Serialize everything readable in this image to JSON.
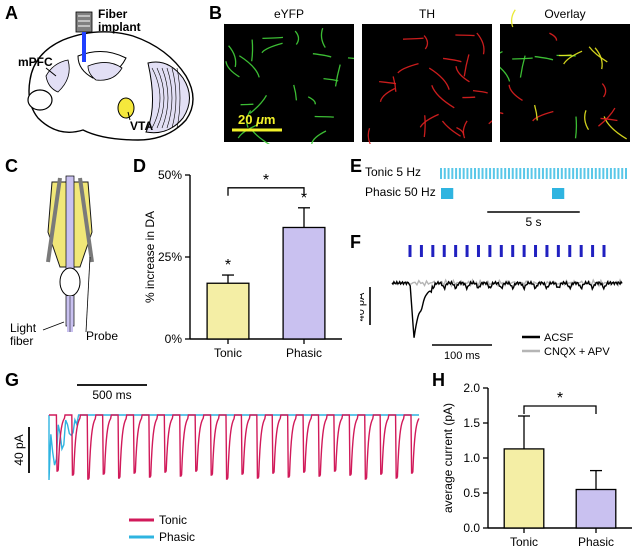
{
  "panelA": {
    "label": "A",
    "annotations": {
      "fiber": "Fiber\nimplant",
      "mpfc": "mPFC",
      "vta": "VTA"
    },
    "colors": {
      "fiber_tip": "#2040ff",
      "fiber_shaft": "#808080",
      "mpfc_fill": "#e2dff5",
      "vta_fill": "#f5e83c",
      "outline": "#000000"
    }
  },
  "panelB": {
    "label": "B",
    "columns": [
      "eYFP",
      "TH",
      "Overlay"
    ],
    "scalebar": "20",
    "scalebar_unit": "μm",
    "colors": {
      "bg": "#000000",
      "eyfp": "#43d13a",
      "th": "#e02020",
      "overlay_yellow": "#e8e820",
      "scalebar_text": "#f2f22a",
      "label_text": "#000000"
    },
    "font_size": 12
  },
  "panelC": {
    "label": "C",
    "light_fiber_label": "Light\nfiber",
    "probe_label": "Probe",
    "colors": {
      "optrode_body": "#f0e56a",
      "fiber": "#c9c1f0",
      "probe": "#7a7a7a",
      "outline": "#000000"
    }
  },
  "panelD": {
    "label": "D",
    "type": "bar",
    "categories": [
      "Tonic",
      "Phasic"
    ],
    "values": [
      17,
      34
    ],
    "errors": [
      2.5,
      6
    ],
    "ylabel": "% increase in DA",
    "ylim": [
      0,
      50
    ],
    "ytick_step": 25,
    "bar_colors": [
      "#f4eea5",
      "#c9c1f0"
    ],
    "bar_border": "#000000",
    "bar_width": 0.55,
    "sig_markers": {
      "bracket_between": "*",
      "above_tonic": "*",
      "above_phasic": "*"
    },
    "tick_fontsize": 12,
    "label_fontsize": 12
  },
  "panelE": {
    "label": "E",
    "tonic_label": "Tonic 5 Hz",
    "phasic_label": "Phasic 50 Hz",
    "tonic_color": "#59c7e8",
    "phasic_color": "#2fb4e0",
    "tonic": {
      "duration_s": 10,
      "count": 50
    },
    "phasic": {
      "trains": 2,
      "train_duration_s": 0.5,
      "gap_s": 5.5
    },
    "scale_label": "5 s",
    "font_size": 12
  },
  "panelF": {
    "label": "F",
    "scalebar_y": "40 pA",
    "scalebar_x": "100 ms",
    "pulse_color": "#2020c0",
    "pulse_count": 18,
    "traces": {
      "acsf": "ACSF",
      "cnqx": "CNQX + APV"
    },
    "trace_colors": {
      "acsf": "#000000",
      "cnqx": "#b5b5b5"
    },
    "font_size": 12
  },
  "panelG": {
    "label": "G",
    "scalebar_x": "500 ms",
    "scalebar_y": "40 pA",
    "legend": {
      "tonic": "Tonic",
      "phasic": "Phasic"
    },
    "colors": {
      "tonic": "#d11a5a",
      "phasic": "#2fb4e0"
    },
    "tonic_spikes": 24,
    "font_size": 12
  },
  "panelH": {
    "label": "H",
    "type": "bar",
    "categories": [
      "Tonic",
      "Phasic"
    ],
    "values": [
      1.13,
      0.55
    ],
    "errors": [
      0.47,
      0.27
    ],
    "ylabel": "average current (pA)",
    "ylim": [
      0,
      2.0
    ],
    "ytick_step": 0.5,
    "bar_colors": [
      "#f4eea5",
      "#c9c1f0"
    ],
    "bar_border": "#000000",
    "bar_width": 0.55,
    "sig_marker": "*",
    "tick_fontsize": 12,
    "label_fontsize": 12
  }
}
